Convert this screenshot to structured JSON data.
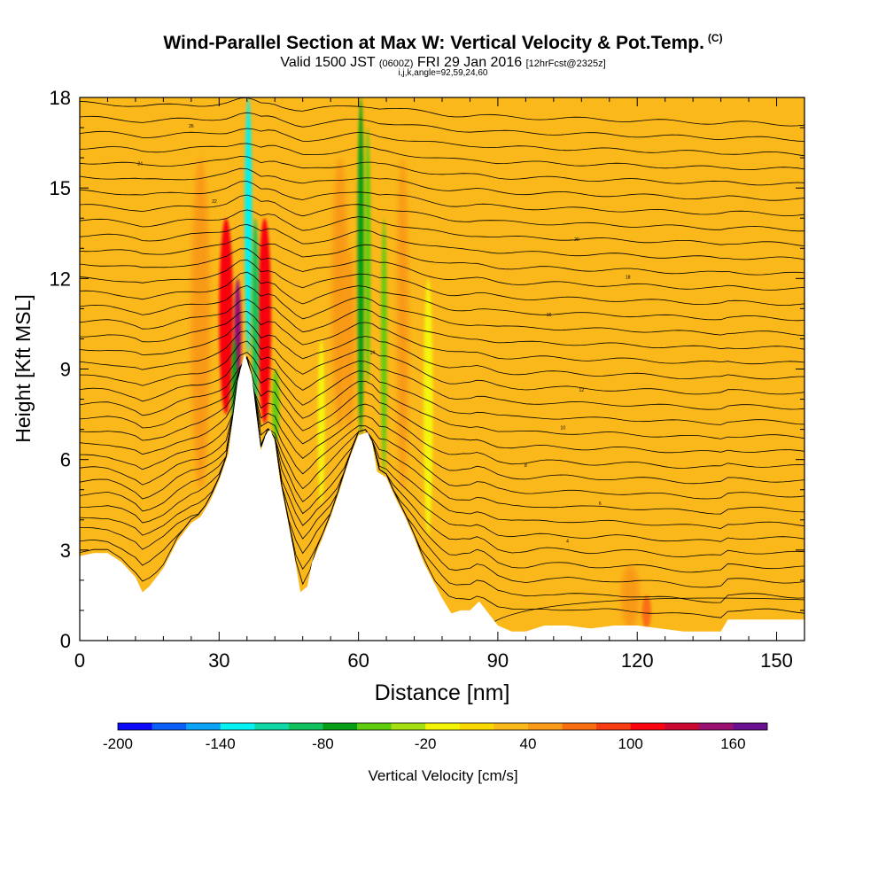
{
  "title": {
    "main": "Wind-Parallel Section at Max W: Vertical Velocity & Pot.Temp.",
    "copyright": "(C)",
    "valid_prefix": "Valid 1500 JST",
    "valid_utc": "(0600Z)",
    "valid_date": "FRI 29 Jan 2016",
    "forecast": "[12hrFcst@2325z]",
    "grid": "i,j,k,angle=92,59,24,60"
  },
  "chart_data": {
    "type": "heatmap",
    "xlabel": "Distance [nm]",
    "ylabel": "Height [Kft MSL]",
    "xlim": [
      0,
      156
    ],
    "ylim": [
      0,
      18
    ],
    "x_ticks": [
      0,
      30,
      60,
      90,
      120,
      150
    ],
    "y_ticks": [
      0,
      3,
      6,
      9,
      12,
      15,
      18
    ],
    "background_value": 20,
    "terrain": [
      [
        0,
        2.8
      ],
      [
        3,
        2.9
      ],
      [
        6,
        2.9
      ],
      [
        9,
        2.6
      ],
      [
        12,
        2.1
      ],
      [
        13.5,
        1.6
      ],
      [
        15,
        1.8
      ],
      [
        18,
        2.4
      ],
      [
        21,
        3.3
      ],
      [
        24,
        3.9
      ],
      [
        26,
        4.1
      ],
      [
        28,
        4.6
      ],
      [
        30,
        5.3
      ],
      [
        32,
        6.2
      ],
      [
        34,
        8.6
      ],
      [
        35.5,
        9.5
      ],
      [
        37,
        8.8
      ],
      [
        38,
        7.5
      ],
      [
        39,
        6.3
      ],
      [
        40,
        6.8
      ],
      [
        41,
        7.0
      ],
      [
        42,
        6.6
      ],
      [
        43,
        5.4
      ],
      [
        44.5,
        4.2
      ],
      [
        46,
        3.0
      ],
      [
        47.5,
        1.6
      ],
      [
        49,
        1.8
      ],
      [
        50,
        2.6
      ],
      [
        52,
        3.3
      ],
      [
        54,
        4.1
      ],
      [
        56,
        5.0
      ],
      [
        58,
        6.0
      ],
      [
        60,
        6.8
      ],
      [
        62,
        6.9
      ],
      [
        63,
        6.5
      ],
      [
        64,
        5.6
      ],
      [
        66,
        5.4
      ],
      [
        68,
        4.7
      ],
      [
        70,
        4.1
      ],
      [
        72,
        3.4
      ],
      [
        74,
        2.6
      ],
      [
        76,
        2.0
      ],
      [
        78,
        1.4
      ],
      [
        80,
        0.9
      ],
      [
        82,
        1.0
      ],
      [
        84,
        1.0
      ],
      [
        86,
        1.3
      ],
      [
        88,
        0.9
      ],
      [
        90,
        0.5
      ],
      [
        93,
        0.3
      ],
      [
        96,
        0.3
      ],
      [
        100,
        0.5
      ],
      [
        105,
        0.5
      ],
      [
        110,
        0.4
      ],
      [
        115,
        0.5
      ],
      [
        120,
        0.5
      ],
      [
        125,
        0.4
      ],
      [
        130,
        0.3
      ],
      [
        135,
        0.3
      ],
      [
        138,
        0.3
      ],
      [
        139.5,
        0.7
      ],
      [
        142,
        0.7
      ],
      [
        150,
        0.7
      ],
      [
        156,
        0.7
      ]
    ],
    "updraft_bands": [
      {
        "x": 7,
        "top": 13.2,
        "bottom": 7.0,
        "width": 6,
        "value": 35
      },
      {
        "x": 17,
        "top": 18,
        "bottom": 11,
        "width": 4,
        "value": 35
      },
      {
        "x": 26,
        "top": 16,
        "bottom": 5.0,
        "width": 4,
        "value": 45
      },
      {
        "x": 31.5,
        "top": 14,
        "bottom": 7.5,
        "width": 3,
        "value": 110
      },
      {
        "x": 34,
        "top": 12,
        "bottom": 8.5,
        "width": 1.6,
        "value": 150
      },
      {
        "x": 39.8,
        "top": 14,
        "bottom": 7.2,
        "width": 2.8,
        "value": 110
      },
      {
        "x": 47,
        "top": 14,
        "bottom": 6.0,
        "width": 3,
        "value": 35
      },
      {
        "x": 56,
        "top": 16,
        "bottom": 7.0,
        "width": 3.5,
        "value": 40
      },
      {
        "x": 58,
        "top": 13,
        "bottom": 7.0,
        "width": 2.5,
        "value": 50
      },
      {
        "x": 69.5,
        "top": 16,
        "bottom": 5.0,
        "width": 2.5,
        "value": 40
      },
      {
        "x": 73,
        "top": 18,
        "bottom": 10,
        "width": 3,
        "value": 35
      },
      {
        "x": 94.5,
        "top": 16.5,
        "bottom": 9.5,
        "width": 4,
        "value": 35
      },
      {
        "x": 102,
        "top": 12.5,
        "bottom": 10.5,
        "width": 2.5,
        "value": 35
      },
      {
        "x": 114,
        "top": 17,
        "bottom": 13,
        "width": 3,
        "value": 35
      },
      {
        "x": 118.5,
        "top": 2.5,
        "bottom": 0.4,
        "width": 4,
        "value": 50
      },
      {
        "x": 122,
        "top": 1.5,
        "bottom": 0.4,
        "width": 2,
        "value": 70
      }
    ],
    "downdraft_bands": [
      {
        "x": 36.3,
        "top": 18,
        "bottom": 9.5,
        "width": 1.6,
        "value": -140
      },
      {
        "x": 37.8,
        "top": 14,
        "bottom": 7.5,
        "width": 1.4,
        "value": -100
      },
      {
        "x": 33.3,
        "top": 10,
        "bottom": 6.2,
        "width": 1.2,
        "value": -70
      },
      {
        "x": 42.2,
        "top": 9,
        "bottom": 6.6,
        "width": 1.5,
        "value": -60
      },
      {
        "x": 60.5,
        "top": 18,
        "bottom": 6.8,
        "width": 1.4,
        "value": -70
      },
      {
        "x": 62,
        "top": 17,
        "bottom": 8.5,
        "width": 1.2,
        "value": -50
      },
      {
        "x": 65.5,
        "top": 14,
        "bottom": 5.5,
        "width": 1.2,
        "value": -60
      },
      {
        "x": 52,
        "top": 10,
        "bottom": 4.5,
        "width": 1.5,
        "value": -20
      },
      {
        "x": 75,
        "top": 12,
        "bottom": 3.5,
        "width": 2,
        "value": -15
      }
    ],
    "contour_labels": [
      "26",
      "24",
      "22",
      "20",
      "18",
      "16",
      "14",
      "12",
      "10",
      "8",
      "6",
      "4"
    ],
    "colorbar": {
      "label": "Vertical Velocity [cm/s]",
      "min": -200,
      "max": 180,
      "step": 20,
      "tick_labels": [
        "-200",
        "-140",
        "-80",
        "-20",
        "40",
        "100",
        "160"
      ],
      "colors": [
        "#0b09f7",
        "#0b5ef7",
        "#0aa2f5",
        "#06f2f2",
        "#0fd8a6",
        "#11c15d",
        "#069e16",
        "#5fcc10",
        "#a4df12",
        "#f4f408",
        "#f9d801",
        "#fbb81b",
        "#f99a19",
        "#f96e13",
        "#f73b12",
        "#f90610",
        "#cc0830",
        "#991070",
        "#6a0f8e"
      ]
    }
  }
}
